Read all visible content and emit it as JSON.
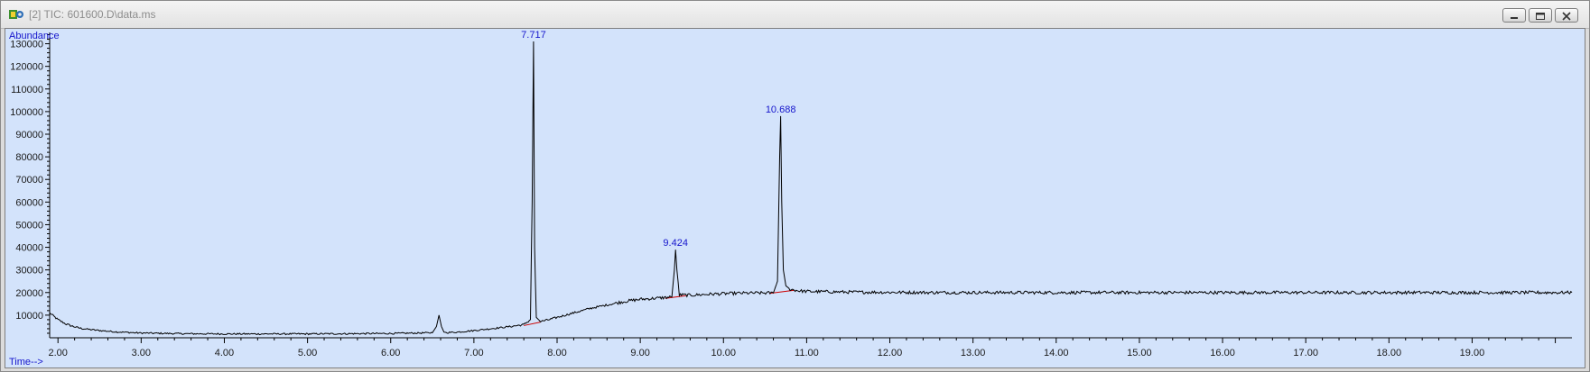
{
  "window": {
    "title": "[2] TIC: 601600.D\\data.ms",
    "icons": [
      "chemstation-app-icon",
      "minimize-icon",
      "restore-icon",
      "close-icon"
    ]
  },
  "colors": {
    "plot_background": "#d3e3fb",
    "trace": "#000000",
    "peak_label": "#1515cc",
    "baseline_marker": "#cc0000"
  },
  "chart_data": {
    "type": "line",
    "title": "",
    "xlabel": "Time-->",
    "ylabel": "Abundance",
    "xlim": [
      1.9,
      20.2
    ],
    "ylim": [
      0,
      135000
    ],
    "grid": false,
    "x_ticks": [
      2,
      3,
      4,
      5,
      6,
      7,
      8,
      9,
      10,
      11,
      12,
      13,
      14,
      15,
      16,
      17,
      18,
      19
    ],
    "x_tick_labels": [
      "2.00",
      "3.00",
      "4.00",
      "5.00",
      "6.00",
      "7.00",
      "8.00",
      "9.00",
      "10.00",
      "11.00",
      "12.00",
      "13.00",
      "14.00",
      "15.00",
      "16.00",
      "17.00",
      "18.00",
      "19.00"
    ],
    "y_ticks": [
      10000,
      20000,
      30000,
      40000,
      50000,
      60000,
      70000,
      80000,
      90000,
      100000,
      110000,
      120000,
      130000
    ],
    "y_tick_labels": [
      "10000",
      "20000",
      "30000",
      "40000",
      "50000",
      "60000",
      "70000",
      "80000",
      "90000",
      "100000",
      "110000",
      "120000",
      "130000"
    ],
    "series": [
      {
        "x": [
          1.9,
          2.0,
          2.1,
          2.2,
          2.3,
          2.5,
          2.7,
          3.0,
          3.5,
          4.0,
          4.5,
          5.0,
          5.5,
          6.0,
          6.5,
          6.55,
          6.58,
          6.61,
          6.64,
          6.68,
          6.8,
          7.0,
          7.2,
          7.4,
          7.6,
          7.68,
          7.7,
          7.717,
          7.73,
          7.75,
          7.8,
          7.9,
          8.0,
          8.2,
          8.4,
          8.6,
          8.8,
          9.0,
          9.2,
          9.38,
          9.41,
          9.424,
          9.44,
          9.47,
          9.6,
          9.8,
          10.0,
          10.2,
          10.4,
          10.6,
          10.65,
          10.675,
          10.688,
          10.7,
          10.72,
          10.75,
          10.8,
          10.9,
          11.0,
          11.5,
          12.0,
          12.5,
          13.0,
          13.5,
          14.0,
          14.5,
          15.0,
          15.5,
          16.0,
          16.5,
          17.0,
          17.5,
          18.0,
          18.5,
          19.0,
          19.5,
          20.0,
          20.2
        ],
        "y": [
          11000,
          8000,
          6000,
          4800,
          4000,
          3200,
          2600,
          2100,
          1800,
          1700,
          1700,
          1700,
          1800,
          1900,
          2200,
          5000,
          10000,
          5000,
          2500,
          2300,
          2500,
          3200,
          4000,
          4800,
          5800,
          8000,
          60000,
          131000,
          40000,
          9000,
          7200,
          8000,
          9000,
          11000,
          13000,
          14500,
          16000,
          17000,
          17500,
          18000,
          30000,
          39000,
          30000,
          19000,
          18800,
          19200,
          19500,
          19700,
          19800,
          19800,
          25000,
          80000,
          98000,
          60000,
          30000,
          23000,
          21500,
          20800,
          20500,
          20200,
          20100,
          20000,
          20000,
          20000,
          20000,
          20000,
          20000,
          20000,
          20000,
          20000,
          20000,
          20000,
          20000,
          20000,
          20000,
          20000,
          20000,
          20000
        ]
      }
    ],
    "peak_labels": [
      {
        "x": 7.717,
        "y": 131000,
        "label": "7.717"
      },
      {
        "x": 9.424,
        "y": 39000,
        "label": "9.424"
      },
      {
        "x": 10.688,
        "y": 98000,
        "label": "10.688"
      }
    ],
    "baselines": [
      {
        "x1": 7.6,
        "y1": 5400,
        "x2": 7.8,
        "y2": 6900
      },
      {
        "x1": 9.3,
        "y1": 17400,
        "x2": 9.55,
        "y2": 18600
      },
      {
        "x1": 10.55,
        "y1": 19600,
        "x2": 10.85,
        "y2": 21000
      }
    ]
  }
}
